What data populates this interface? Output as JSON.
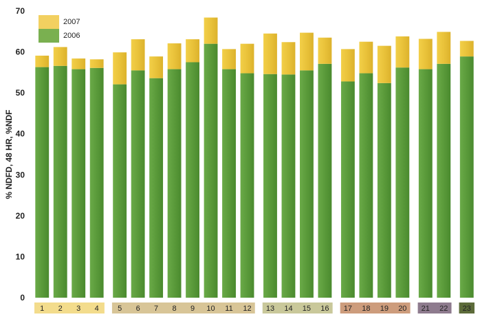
{
  "chart_data": {
    "type": "bar",
    "stacked": true,
    "ylabel": "% NDFD, 48 HR, %NDF",
    "ylim": [
      0,
      70
    ],
    "yticks": [
      0,
      10,
      20,
      30,
      40,
      50,
      60,
      70
    ],
    "grid": false,
    "legend_position": "top-left",
    "categories": [
      "1",
      "2",
      "3",
      "4",
      "5",
      "6",
      "7",
      "8",
      "9",
      "10",
      "11",
      "12",
      "13",
      "14",
      "15",
      "16",
      "17",
      "18",
      "19",
      "20",
      "21",
      "22",
      "23"
    ],
    "groups": [
      {
        "members": [
          "1",
          "2",
          "3",
          "4"
        ],
        "color": "#f3dc8c"
      },
      {
        "members": [
          "5",
          "6",
          "7",
          "8",
          "9",
          "10",
          "11",
          "12"
        ],
        "color": "#d8c597"
      },
      {
        "members": [
          "13",
          "14",
          "15",
          "16"
        ],
        "color": "#c9c89a"
      },
      {
        "members": [
          "17",
          "18",
          "19",
          "20"
        ],
        "color": "#cd9c7c"
      },
      {
        "members": [
          "21",
          "22"
        ],
        "color": "#8e7b8e"
      },
      {
        "members": [
          "23"
        ],
        "color": "#5d6b3a"
      }
    ],
    "series": [
      {
        "name": "2006",
        "color": "#5a9a3a",
        "values": [
          56.3,
          56.6,
          55.8,
          56.1,
          52.1,
          55.5,
          53.6,
          55.8,
          57.5,
          62.0,
          55.8,
          54.8,
          54.6,
          54.5,
          55.5,
          57.1,
          52.8,
          54.8,
          52.4,
          56.2,
          55.8,
          57.1,
          58.9
        ]
      },
      {
        "name": "2007",
        "color": "#e9c23a",
        "values": [
          2.8,
          4.6,
          2.6,
          2.1,
          7.8,
          7.6,
          5.3,
          6.3,
          5.6,
          6.4,
          4.9,
          7.2,
          9.9,
          7.9,
          9.2,
          6.4,
          7.9,
          7.7,
          9.1,
          7.6,
          7.4,
          7.8,
          3.8
        ]
      }
    ]
  }
}
